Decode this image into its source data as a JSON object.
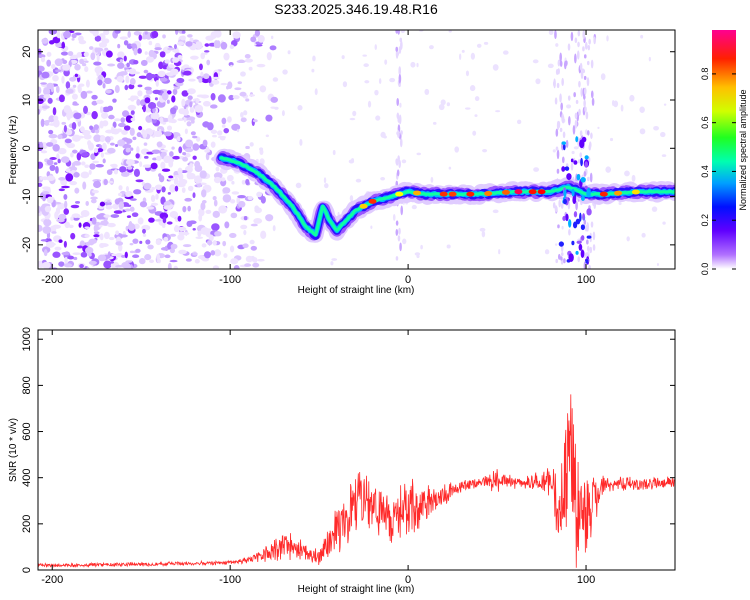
{
  "chart_data": [
    {
      "type": "heatmap",
      "title": "S233.2025.346.19.48.R16",
      "xlabel": "Height of straight line (km)",
      "ylabel": "Frequency (Hz)",
      "xlim": [
        -208,
        150
      ],
      "ylim": [
        -25,
        24.5
      ],
      "x_ticks": [
        -200,
        -100,
        0,
        100
      ],
      "y_ticks": [
        -20,
        -10,
        0,
        10,
        20
      ],
      "colorbar": {
        "label": "Normalized spectral amplitude",
        "range": [
          0,
          0.98
        ],
        "ticks": [
          "0.0",
          "0.2",
          "0.4",
          "0.6",
          "0.8"
        ],
        "tick_values": [
          0.0,
          0.2,
          0.4,
          0.6,
          0.8
        ],
        "colors": [
          "#ffffff",
          "#8000ff",
          "#0000ff",
          "#00c0ff",
          "#00ff80",
          "#80ff00",
          "#ffff00",
          "#ff8000",
          "#ff0000",
          "#ff0080"
        ]
      },
      "ridge": {
        "x": [
          -105,
          -95,
          -85,
          -75,
          -65,
          -58,
          -52,
          -48,
          -44,
          -40,
          -30,
          -20,
          -10,
          0,
          10,
          20,
          40,
          60,
          80,
          90,
          100,
          110,
          130,
          150
        ],
        "y": [
          -2,
          -3,
          -5,
          -8,
          -12,
          -16,
          -18,
          -12,
          -15,
          -17,
          -13,
          -11,
          -10,
          -9,
          -9.5,
          -9.5,
          -9.5,
          -9,
          -9,
          -8,
          -9.5,
          -9.5,
          -9,
          -9
        ]
      },
      "noise_until_x": -100
    },
    {
      "type": "line",
      "xlabel": "Height of straight line (km)",
      "ylabel": "SNR (10 * v/v)",
      "xlim": [
        -208,
        150
      ],
      "ylim": [
        0,
        1040
      ],
      "x_ticks": [
        -200,
        -100,
        0,
        100
      ],
      "y_ticks": [
        0,
        200,
        400,
        600,
        800,
        1000
      ],
      "series": [
        {
          "name": "SNR",
          "color": "#ff2a2a",
          "x": [
            -208,
            -150,
            -110,
            -90,
            -80,
            -70,
            -60,
            -50,
            -40,
            -30,
            -20,
            -10,
            0,
            10,
            20,
            30,
            40,
            50,
            60,
            70,
            80,
            85,
            90,
            95,
            100,
            110,
            130,
            150
          ],
          "y": [
            20,
            25,
            30,
            40,
            70,
            110,
            90,
            50,
            170,
            270,
            300,
            200,
            260,
            290,
            330,
            360,
            380,
            390,
            380,
            380,
            380,
            250,
            500,
            300,
            250,
            380,
            370,
            380
          ],
          "amplitude": [
            10,
            10,
            10,
            15,
            40,
            70,
            60,
            40,
            120,
            160,
            180,
            120,
            160,
            120,
            60,
            40,
            30,
            60,
            30,
            40,
            80,
            200,
            500,
            300,
            200,
            40,
            30,
            30
          ]
        }
      ]
    }
  ]
}
